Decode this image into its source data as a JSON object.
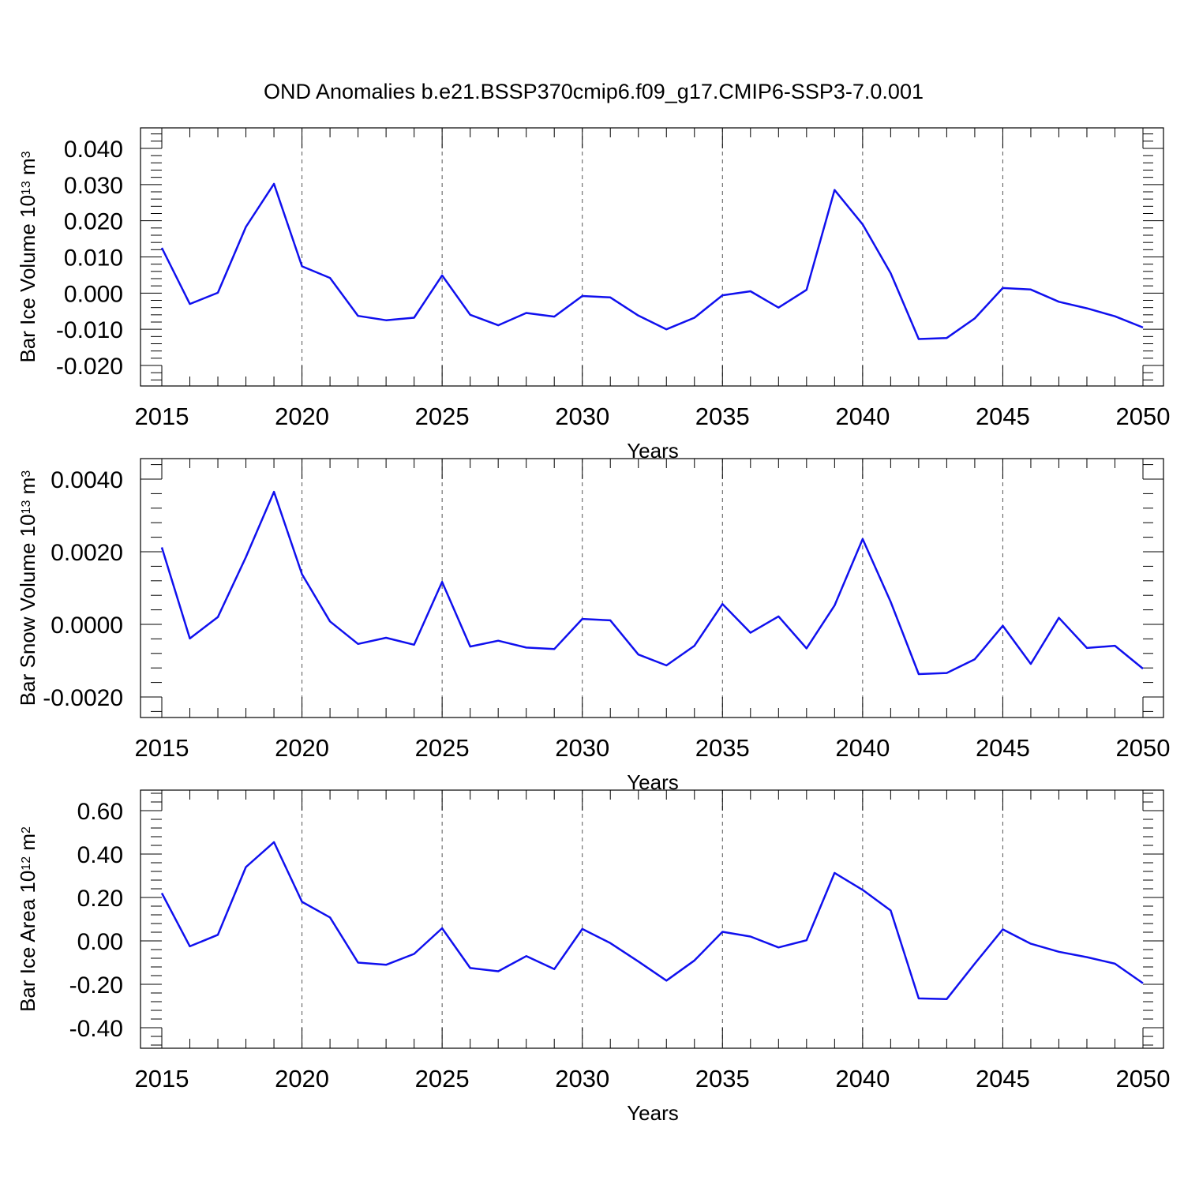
{
  "title": "OND Anomalies b.e21.BSSP370cmip6.f09_g17.CMIP6-SSP3-7.0.001",
  "colors": {
    "series": "#1010ee",
    "grid": "#555555",
    "axis": "#000000"
  },
  "chart_data": [
    {
      "type": "line",
      "xlabel": "Years",
      "ylabel": {
        "text": "Bar Ice Volume 10",
        "sup1": "13",
        "mid": " m",
        "sup2": "3"
      },
      "xlim": [
        2015,
        2050
      ],
      "ylim": [
        -0.02,
        0.04
      ],
      "yticks": [
        -0.02,
        -0.01,
        0.0,
        0.01,
        0.02,
        0.03,
        0.04
      ],
      "ytick_labels": [
        "-0.020",
        "-0.010",
        "0.000",
        "0.010",
        "0.020",
        "0.030",
        "0.040"
      ],
      "xticks": [
        2015,
        2020,
        2025,
        2030,
        2035,
        2040,
        2045,
        2050
      ],
      "xtick_labels": [
        "2015",
        "2020",
        "2025",
        "2030",
        "2035",
        "2040",
        "2045",
        "2050"
      ],
      "grid": "dashed vertical at major x ticks",
      "x": [
        2015,
        2016,
        2017,
        2018,
        2019,
        2020,
        2021,
        2022,
        2023,
        2024,
        2025,
        2026,
        2027,
        2028,
        2029,
        2030,
        2031,
        2032,
        2033,
        2034,
        2035,
        2036,
        2037,
        2038,
        2039,
        2040,
        2041,
        2042,
        2043,
        2044,
        2045,
        2046,
        2047,
        2048,
        2049,
        2050
      ],
      "y": [
        0.0125,
        -0.003,
        0.0001,
        0.0183,
        0.0302,
        0.0074,
        0.0042,
        -0.0063,
        -0.0075,
        -0.0068,
        0.0049,
        -0.006,
        -0.0089,
        -0.0055,
        -0.0065,
        -0.0008,
        -0.0012,
        -0.0062,
        -0.01,
        -0.0068,
        -0.0006,
        0.0005,
        -0.004,
        0.0009,
        0.0285,
        0.019,
        0.0055,
        -0.0127,
        -0.0124,
        -0.007,
        0.0014,
        0.001,
        -0.0024,
        -0.0042,
        -0.0064,
        -0.0095
      ]
    },
    {
      "type": "line",
      "xlabel": "Years",
      "ylabel": {
        "text": "Bar Snow Volume 10",
        "sup1": "13",
        "mid": " m",
        "sup2": "3"
      },
      "xlim": [
        2015,
        2050
      ],
      "ylim": [
        -0.002,
        0.004
      ],
      "yticks": [
        -0.002,
        0.0,
        0.002,
        0.004
      ],
      "ytick_labels": [
        "-0.0020",
        "0.0000",
        "0.0020",
        "0.0040"
      ],
      "xticks": [
        2015,
        2020,
        2025,
        2030,
        2035,
        2040,
        2045,
        2050
      ],
      "xtick_labels": [
        "2015",
        "2020",
        "2025",
        "2030",
        "2035",
        "2040",
        "2045",
        "2050"
      ],
      "grid": "dashed vertical at major x ticks",
      "x": [
        2015,
        2016,
        2017,
        2018,
        2019,
        2020,
        2021,
        2022,
        2023,
        2024,
        2025,
        2026,
        2027,
        2028,
        2029,
        2030,
        2031,
        2032,
        2033,
        2034,
        2035,
        2036,
        2037,
        2038,
        2039,
        2040,
        2041,
        2042,
        2043,
        2044,
        2045,
        2046,
        2047,
        2048,
        2049,
        2050
      ],
      "y": [
        0.00212,
        -0.00039,
        0.0002,
        0.00185,
        0.00365,
        0.00138,
        8e-05,
        -0.00054,
        -0.00037,
        -0.00056,
        0.00117,
        -0.00061,
        -0.00045,
        -0.00064,
        -0.00068,
        0.00015,
        0.00011,
        -0.00083,
        -0.00113,
        -0.00059,
        0.00056,
        -0.00023,
        0.00022,
        -0.00066,
        0.00052,
        0.00235,
        0.00062,
        -0.00137,
        -0.00134,
        -0.00096,
        -4e-05,
        -0.00109,
        0.00018,
        -0.00065,
        -0.00059,
        -0.00122
      ]
    },
    {
      "type": "line",
      "xlabel": "Years",
      "ylabel": {
        "text": "Bar Ice Area 10",
        "sup1": "12",
        "mid": " m",
        "sup2": "2"
      },
      "xlim": [
        2015,
        2050
      ],
      "ylim": [
        -0.4,
        0.6
      ],
      "yticks": [
        -0.4,
        -0.2,
        0.0,
        0.2,
        0.4,
        0.6
      ],
      "ytick_labels": [
        "-0.40",
        "-0.20",
        "0.00",
        "0.20",
        "0.40",
        "0.60"
      ],
      "xticks": [
        2015,
        2020,
        2025,
        2030,
        2035,
        2040,
        2045,
        2050
      ],
      "xtick_labels": [
        "2015",
        "2020",
        "2025",
        "2030",
        "2035",
        "2040",
        "2045",
        "2050"
      ],
      "grid": "dashed vertical at major x ticks",
      "x": [
        2015,
        2016,
        2017,
        2018,
        2019,
        2020,
        2021,
        2022,
        2023,
        2024,
        2025,
        2026,
        2027,
        2028,
        2029,
        2030,
        2031,
        2032,
        2033,
        2034,
        2035,
        2036,
        2037,
        2038,
        2039,
        2040,
        2041,
        2042,
        2043,
        2044,
        2045,
        2046,
        2047,
        2048,
        2049,
        2050
      ],
      "y": [
        0.22,
        -0.025,
        0.028,
        0.34,
        0.455,
        0.18,
        0.108,
        -0.1,
        -0.11,
        -0.06,
        0.058,
        -0.125,
        -0.14,
        -0.07,
        -0.13,
        0.055,
        -0.01,
        -0.095,
        -0.183,
        -0.09,
        0.042,
        0.02,
        -0.03,
        0.003,
        0.313,
        0.235,
        0.14,
        -0.265,
        -0.268,
        -0.105,
        0.053,
        -0.013,
        -0.05,
        -0.075,
        -0.105,
        -0.195
      ]
    }
  ]
}
